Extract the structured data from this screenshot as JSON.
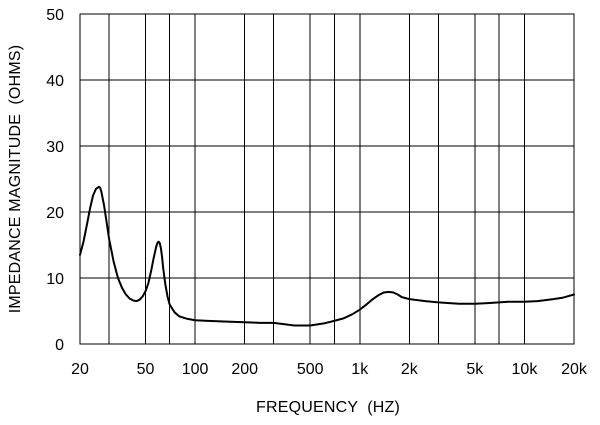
{
  "chart_data": {
    "type": "line",
    "title": "",
    "xlabel": "FREQUENCY  (HZ)",
    "ylabel": "IMPEDANCE MAGNITUDE  (OHMS)",
    "x_scale": "log",
    "xlim": [
      20,
      20000
    ],
    "ylim": [
      0,
      50
    ],
    "grid": true,
    "legend": "none",
    "colors": {
      "line": "#000000",
      "grid": "#000000",
      "background": "#ffffff"
    },
    "x_ticks": [
      {
        "value": 20,
        "label": "20"
      },
      {
        "value": 50,
        "label": "50"
      },
      {
        "value": 100,
        "label": "100"
      },
      {
        "value": 200,
        "label": "200"
      },
      {
        "value": 500,
        "label": "500"
      },
      {
        "value": 1000,
        "label": "1k"
      },
      {
        "value": 2000,
        "label": "2k"
      },
      {
        "value": 5000,
        "label": "5k"
      },
      {
        "value": 10000,
        "label": "10k"
      },
      {
        "value": 20000,
        "label": "20k"
      }
    ],
    "y_ticks": [
      {
        "value": 0,
        "label": "0"
      },
      {
        "value": 10,
        "label": "10"
      },
      {
        "value": 20,
        "label": "20"
      },
      {
        "value": 30,
        "label": "30"
      },
      {
        "value": 40,
        "label": "40"
      },
      {
        "value": 50,
        "label": "50"
      }
    ],
    "x_grid": [
      20,
      30,
      50,
      70,
      100,
      200,
      300,
      500,
      700,
      1000,
      2000,
      3000,
      5000,
      7000,
      10000,
      20000
    ],
    "y_grid": [
      0,
      10,
      20,
      30,
      40,
      50
    ],
    "series": [
      {
        "x": [
          20,
          21,
          22,
          23,
          24,
          25,
          26,
          26.5,
          27,
          28,
          29,
          30,
          32,
          34,
          36,
          38,
          40,
          42,
          44,
          46,
          48,
          50,
          52,
          54,
          56,
          58,
          59,
          60,
          61,
          62,
          63,
          64,
          66,
          68,
          70,
          75,
          80,
          90,
          100,
          120,
          150,
          200,
          250,
          300,
          350,
          400,
          450,
          500,
          600,
          700,
          800,
          900,
          1000,
          1100,
          1200,
          1300,
          1400,
          1500,
          1600,
          1700,
          1800,
          2000,
          2500,
          3000,
          4000,
          5000,
          6000,
          7000,
          8000,
          10000,
          12000,
          15000,
          17000,
          20000
        ],
        "y": [
          13.5,
          15.5,
          18,
          20.5,
          22.5,
          23.5,
          23.8,
          23.7,
          23.0,
          21.0,
          18.5,
          16.0,
          12.5,
          10.0,
          8.5,
          7.5,
          6.9,
          6.6,
          6.5,
          6.7,
          7.2,
          8.0,
          9.2,
          11.0,
          13.0,
          14.7,
          15.3,
          15.5,
          15.3,
          14.5,
          13.2,
          11.5,
          9.0,
          7.2,
          6.0,
          4.8,
          4.2,
          3.8,
          3.6,
          3.5,
          3.4,
          3.3,
          3.2,
          3.2,
          3.0,
          2.8,
          2.8,
          2.8,
          3.1,
          3.5,
          3.9,
          4.5,
          5.2,
          6.0,
          6.8,
          7.4,
          7.8,
          7.9,
          7.8,
          7.5,
          7.1,
          6.8,
          6.5,
          6.3,
          6.1,
          6.1,
          6.2,
          6.3,
          6.4,
          6.4,
          6.5,
          6.8,
          7.0,
          7.5
        ]
      }
    ]
  }
}
